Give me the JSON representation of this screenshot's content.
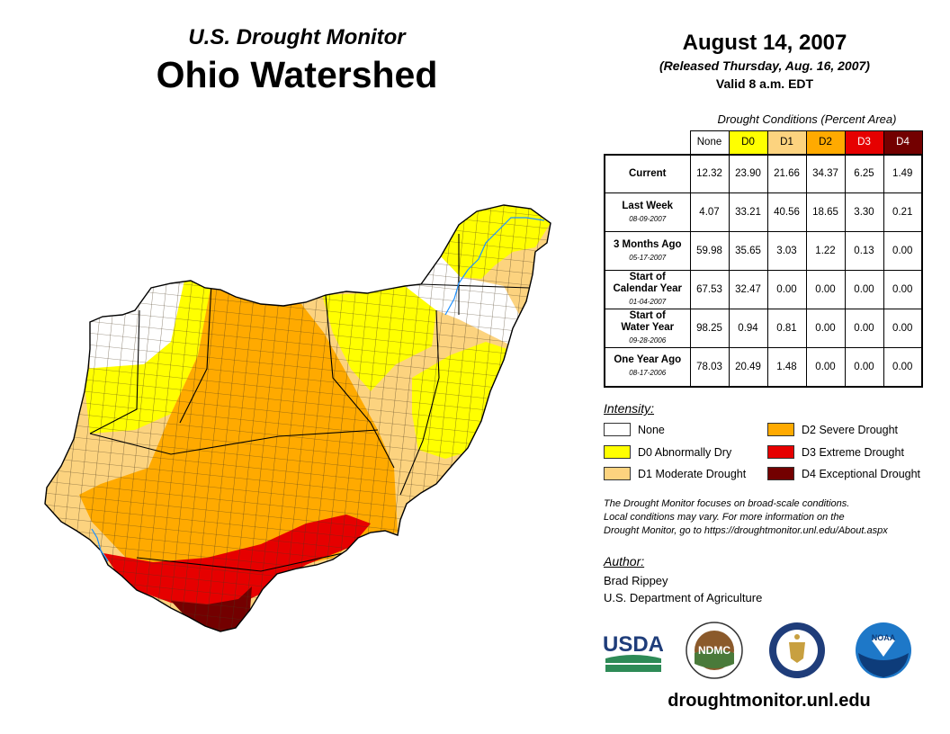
{
  "header": {
    "subtitle": "U.S. Drought Monitor",
    "title": "Ohio Watershed",
    "date": "August 14, 2007",
    "released": "(Released Thursday, Aug. 16, 2007)",
    "valid": "Valid 8 a.m. EDT"
  },
  "table": {
    "title": "Drought Conditions (Percent Area)",
    "columns": [
      "None",
      "D0",
      "D1",
      "D2",
      "D3",
      "D4"
    ],
    "rows": [
      {
        "label": "Current",
        "label2": "",
        "date": "",
        "values": [
          "12.32",
          "23.90",
          "21.66",
          "34.37",
          "6.25",
          "1.49"
        ]
      },
      {
        "label": "Last Week",
        "label2": "",
        "date": "08-09-2007",
        "values": [
          "4.07",
          "33.21",
          "40.56",
          "18.65",
          "3.30",
          "0.21"
        ]
      },
      {
        "label": "3 Months Ago",
        "label2": "",
        "date": "05-17-2007",
        "values": [
          "59.98",
          "35.65",
          "3.03",
          "1.22",
          "0.13",
          "0.00"
        ]
      },
      {
        "label": "Start of",
        "label2": "Calendar Year",
        "date": "01-04-2007",
        "values": [
          "67.53",
          "32.47",
          "0.00",
          "0.00",
          "0.00",
          "0.00"
        ]
      },
      {
        "label": "Start of",
        "label2": "Water Year",
        "date": "09-28-2006",
        "values": [
          "98.25",
          "0.94",
          "0.81",
          "0.00",
          "0.00",
          "0.00"
        ]
      },
      {
        "label": "One Year Ago",
        "label2": "",
        "date": "08-17-2006",
        "values": [
          "78.03",
          "20.49",
          "1.48",
          "0.00",
          "0.00",
          "0.00"
        ]
      }
    ]
  },
  "legend": {
    "title": "Intensity:",
    "items": [
      {
        "label": "None",
        "color": "#ffffff"
      },
      {
        "label": "D0 Abnormally Dry",
        "color": "#ffff00"
      },
      {
        "label": "D1 Moderate Drought",
        "color": "#fcd37f"
      },
      {
        "label": "D2 Severe Drought",
        "color": "#ffaa00"
      },
      {
        "label": "D3 Extreme Drought",
        "color": "#e60000"
      },
      {
        "label": "D4 Exceptional Drought",
        "color": "#730000"
      }
    ]
  },
  "note": {
    "line1": "The Drought Monitor focuses on broad-scale conditions.",
    "line2": "Local conditions may vary. For more information on the",
    "line3": "Drought Monitor, go to https://droughtmonitor.unl.edu/About.aspx"
  },
  "author": {
    "title": "Author:",
    "name": "Brad Rippey",
    "org": "U.S. Department of Agriculture"
  },
  "logos": {
    "usda": "USDA",
    "ndmc": "NDMC",
    "noaa": "NOAA"
  },
  "website": "droughtmonitor.unl.edu"
}
